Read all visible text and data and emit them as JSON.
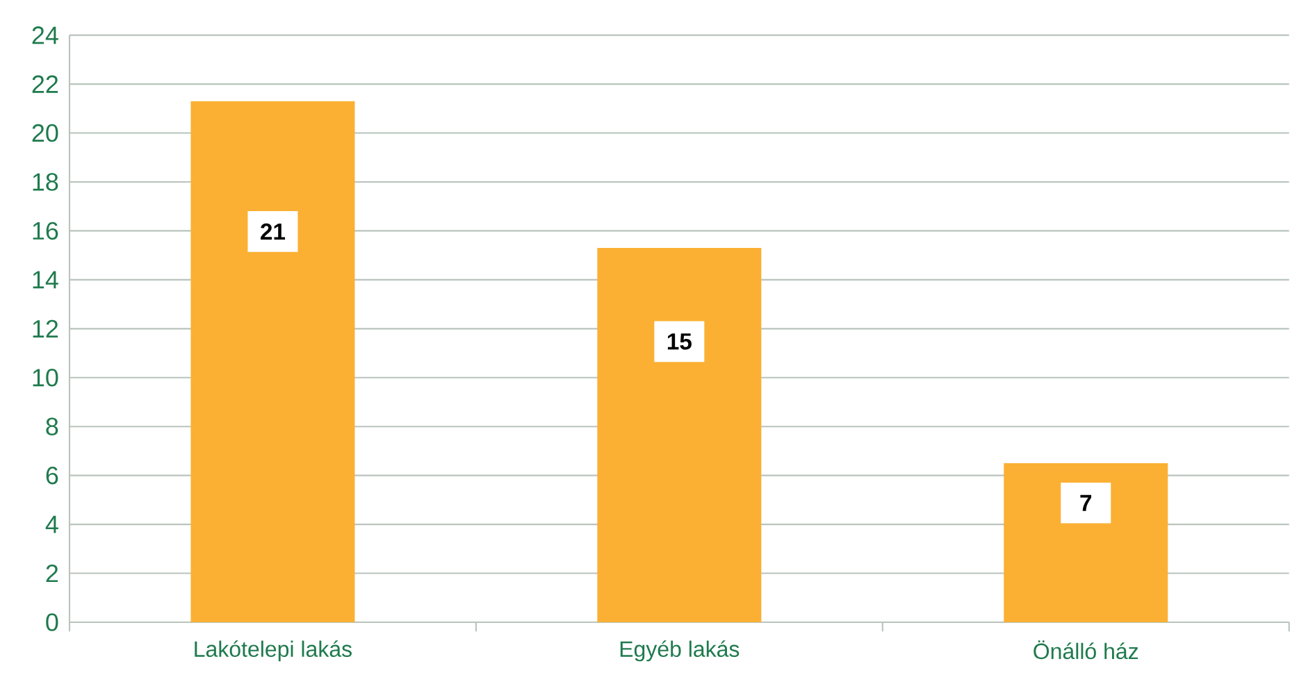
{
  "chart_data": {
    "type": "bar",
    "categories": [
      "Lakótelepi lakás",
      "Egyéb lakás",
      "Önálló ház"
    ],
    "values": [
      21.3,
      15.3,
      6.5
    ],
    "value_labels": [
      "21",
      "15",
      "7"
    ],
    "color": "#fbb034",
    "ylim": [
      0,
      24
    ],
    "yticks": [
      0,
      2,
      4,
      6,
      8,
      10,
      12,
      14,
      16,
      18,
      20,
      22,
      24
    ],
    "grid": "y"
  }
}
